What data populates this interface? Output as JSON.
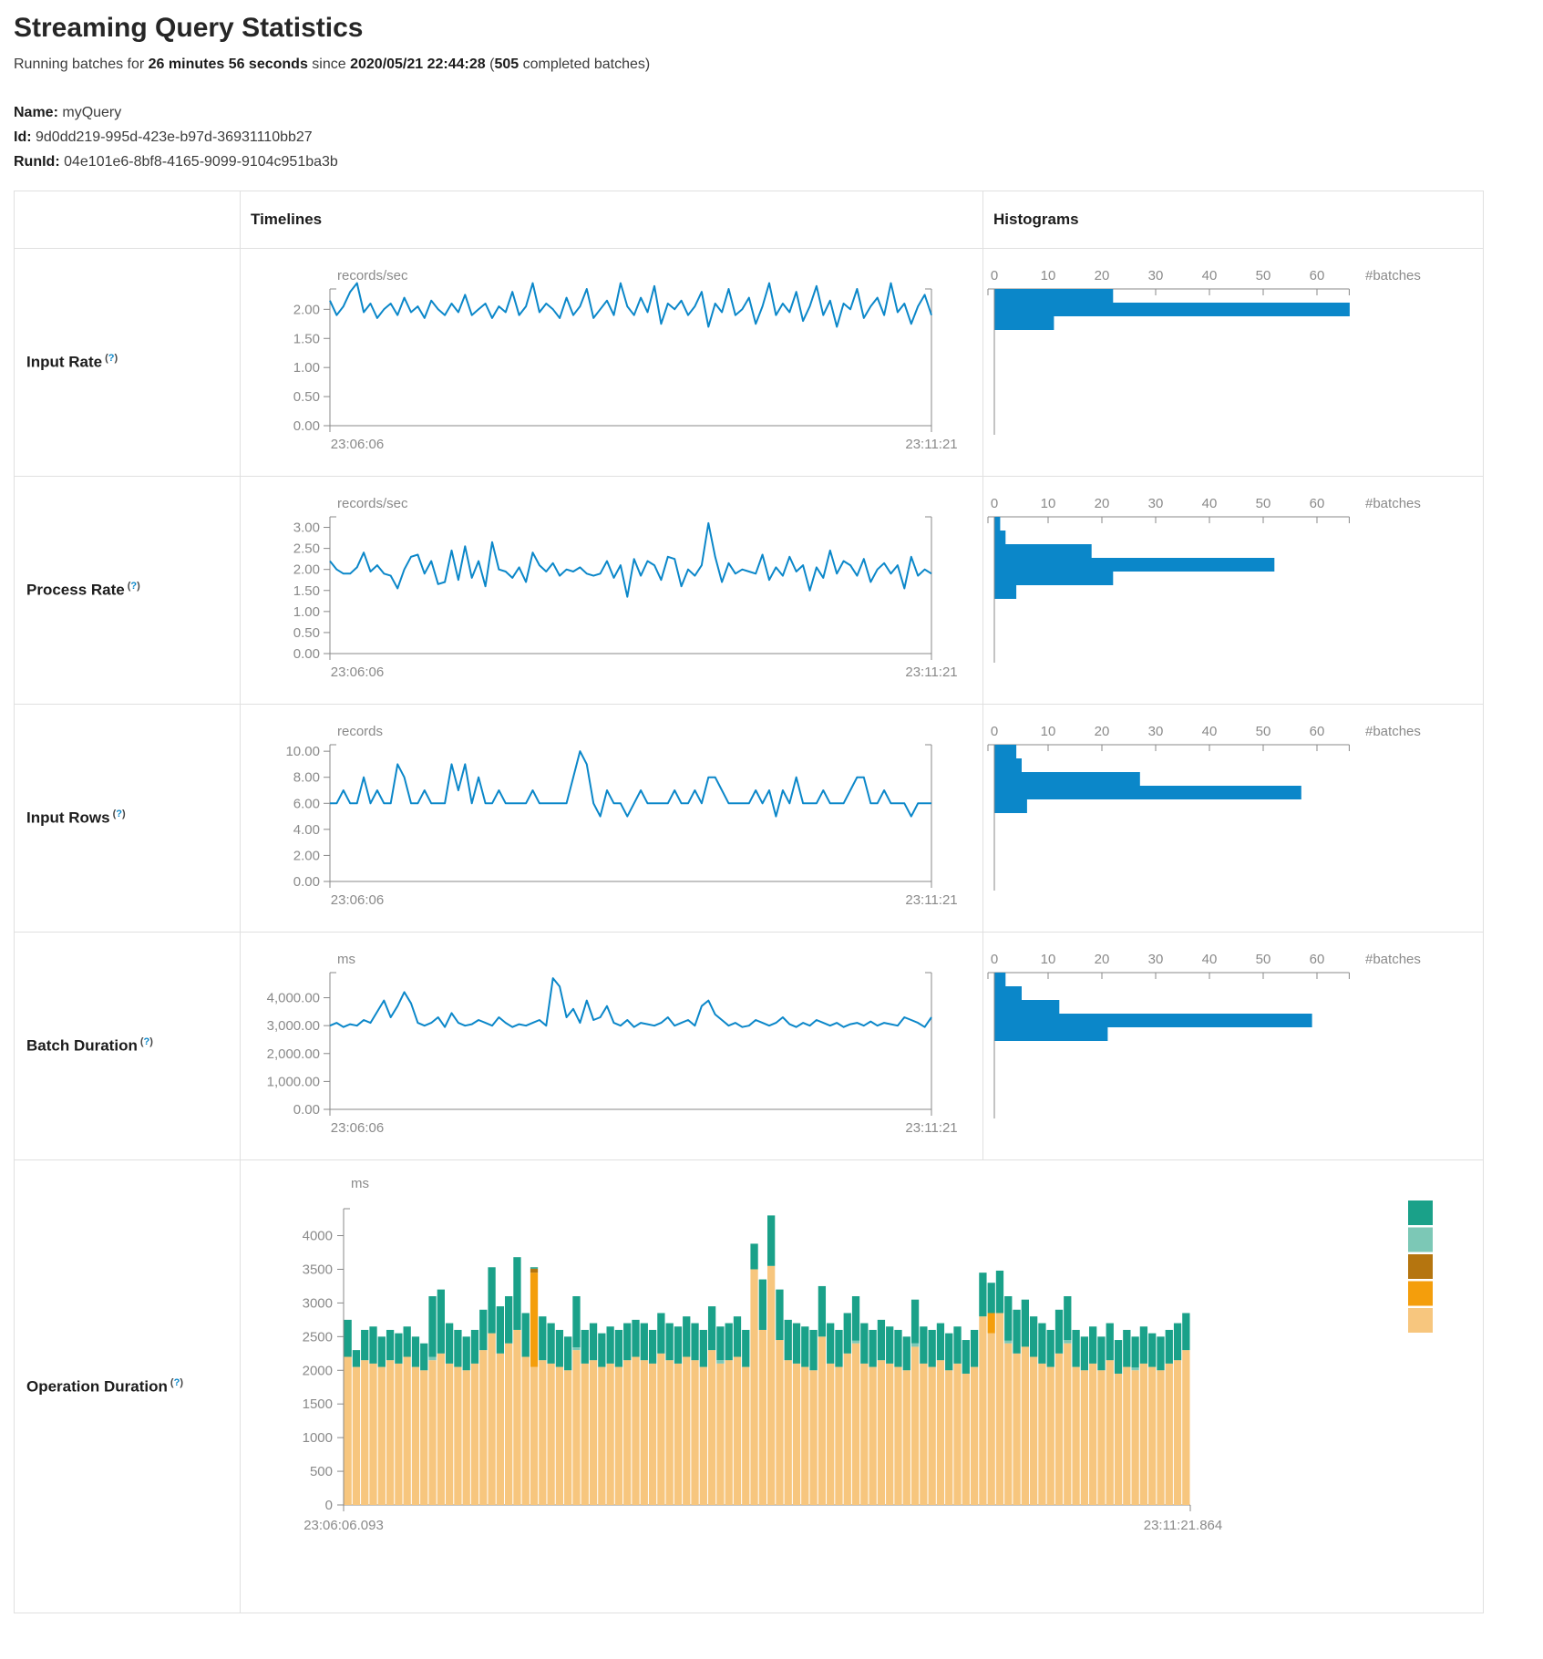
{
  "page": {
    "title": "Streaming Query Statistics",
    "subtitle": {
      "prefix": "Running batches for ",
      "duration": "26 minutes 56 seconds",
      "mid": " since ",
      "since": "2020/05/21 22:44:28",
      "paren_open": " (",
      "batches": "505",
      "paren_close": " completed batches)"
    },
    "name_label": "Name:",
    "name": "myQuery",
    "id_label": "Id:",
    "id": "9d0dd219-995d-423e-b97d-36931110bb27",
    "runid_label": "RunId:",
    "runid": "04e101e6-8bf8-4165-9099-9104c951ba3b"
  },
  "table": {
    "headers": {
      "timelines": "Timelines",
      "histograms": "Histograms"
    }
  },
  "help": {
    "open": "(",
    "q": "?",
    "close": ")"
  },
  "colors": {
    "line": "#0b87c9",
    "hist": "#0b87c9",
    "axis": "#888888",
    "tick_text": "#8a8a8a",
    "teal": "#1aa189",
    "light_teal": "#7cc8b6",
    "brown": "#b5750f",
    "orange": "#f49e0c",
    "tan": "#f7c67e"
  },
  "chart_data": [
    {
      "row": "Input Rate",
      "type": "line",
      "unit": "records/sec",
      "x_start": "23:06:06",
      "x_end": "23:11:21",
      "ylim": [
        0,
        2.35
      ],
      "y_tick_values": [
        2,
        1.5,
        1,
        0.5,
        0
      ],
      "y_tick_labels": [
        "2.00",
        "1.50",
        "1.00",
        "0.50",
        "0.00"
      ],
      "values": [
        2.15,
        1.9,
        2.05,
        2.3,
        2.45,
        1.95,
        2.1,
        1.85,
        2.0,
        2.1,
        1.9,
        2.2,
        1.95,
        2.05,
        1.85,
        2.15,
        2.0,
        1.9,
        2.1,
        1.95,
        2.25,
        1.9,
        2.0,
        2.1,
        1.85,
        2.05,
        1.95,
        2.3,
        1.9,
        2.05,
        2.45,
        1.95,
        2.1,
        2.0,
        1.85,
        2.2,
        1.9,
        2.05,
        2.35,
        1.85,
        2.0,
        2.15,
        1.9,
        2.45,
        2.05,
        1.9,
        2.2,
        1.95,
        2.4,
        1.75,
        2.1,
        2.0,
        2.15,
        1.9,
        2.05,
        2.3,
        1.7,
        2.1,
        1.95,
        2.35,
        1.9,
        2.0,
        2.2,
        1.75,
        2.05,
        2.45,
        1.9,
        2.1,
        1.95,
        2.3,
        1.8,
        2.05,
        2.4,
        1.9,
        2.15,
        1.7,
        2.1,
        2.0,
        2.35,
        1.85,
        2.05,
        2.2,
        1.9,
        2.45,
        1.95,
        2.1,
        1.75,
        2.05,
        2.25,
        1.9
      ],
      "histogram": {
        "xlabel": "#batches",
        "tick_values": [
          0,
          10,
          20,
          30,
          40,
          50,
          60
        ],
        "tick_labels": [
          "0",
          "10",
          "20",
          "30",
          "40",
          "50",
          "60"
        ],
        "xlim": [
          0,
          66
        ],
        "bins": [
          22,
          66,
          11
        ]
      }
    },
    {
      "row": "Process Rate",
      "type": "line",
      "unit": "records/sec",
      "x_start": "23:06:06",
      "x_end": "23:11:21",
      "ylim": [
        0,
        3.25
      ],
      "y_tick_values": [
        3,
        2.5,
        2,
        1.5,
        1,
        0.5,
        0
      ],
      "y_tick_labels": [
        "3.00",
        "2.50",
        "2.00",
        "1.50",
        "1.00",
        "0.50",
        "0.00"
      ],
      "values": [
        2.2,
        2.0,
        1.9,
        1.9,
        2.05,
        2.4,
        1.95,
        2.1,
        1.9,
        1.85,
        1.55,
        2.0,
        2.3,
        2.35,
        1.9,
        2.2,
        1.65,
        1.7,
        2.45,
        1.75,
        2.55,
        1.8,
        2.2,
        1.6,
        2.65,
        2.0,
        1.95,
        1.8,
        2.05,
        1.7,
        2.4,
        2.1,
        1.95,
        2.15,
        1.85,
        2.0,
        1.95,
        2.05,
        1.9,
        1.85,
        1.9,
        2.2,
        1.8,
        2.1,
        1.35,
        2.25,
        1.85,
        2.2,
        2.1,
        1.75,
        2.3,
        2.25,
        1.6,
        2.0,
        1.85,
        2.1,
        3.1,
        2.3,
        1.7,
        2.15,
        1.9,
        2.0,
        1.95,
        1.9,
        2.35,
        1.75,
        2.05,
        1.85,
        2.3,
        1.95,
        2.1,
        1.5,
        2.05,
        1.8,
        2.45,
        1.9,
        2.2,
        2.1,
        1.85,
        2.25,
        1.7,
        2.0,
        2.15,
        1.9,
        2.1,
        1.55,
        2.3,
        1.85,
        2.0,
        1.9
      ],
      "histogram": {
        "xlabel": "#batches",
        "tick_values": [
          0,
          10,
          20,
          30,
          40,
          50,
          60
        ],
        "tick_labels": [
          "0",
          "10",
          "20",
          "30",
          "40",
          "50",
          "60"
        ],
        "xlim": [
          0,
          66
        ],
        "bins": [
          1,
          2,
          18,
          52,
          22,
          4
        ]
      }
    },
    {
      "row": "Input Rows",
      "type": "line",
      "unit": "records",
      "x_start": "23:06:06",
      "x_end": "23:11:21",
      "ylim": [
        0,
        10.5
      ],
      "y_tick_values": [
        10,
        8,
        6,
        4,
        2,
        0
      ],
      "y_tick_labels": [
        "10.00",
        "8.00",
        "6.00",
        "4.00",
        "2.00",
        "0.00"
      ],
      "values": [
        6,
        6,
        7,
        6,
        6,
        8,
        6,
        7,
        6,
        6,
        9,
        8,
        6,
        6,
        7,
        6,
        6,
        6,
        9,
        7,
        9,
        6,
        8,
        6,
        6,
        7,
        6,
        6,
        6,
        6,
        7,
        6,
        6,
        6,
        6,
        6,
        8,
        10,
        9,
        6,
        5,
        7,
        6,
        6,
        5,
        6,
        7,
        6,
        6,
        6,
        6,
        7,
        6,
        6,
        7,
        6,
        8,
        8,
        7,
        6,
        6,
        6,
        6,
        7,
        6,
        7,
        5,
        7,
        6,
        8,
        6,
        6,
        6,
        7,
        6,
        6,
        6,
        7,
        8,
        8,
        6,
        6,
        7,
        6,
        6,
        6,
        5,
        6,
        6,
        6
      ],
      "histogram": {
        "xlabel": "#batches",
        "tick_values": [
          0,
          10,
          20,
          30,
          40,
          50,
          60
        ],
        "tick_labels": [
          "0",
          "10",
          "20",
          "30",
          "40",
          "50",
          "60"
        ],
        "xlim": [
          0,
          66
        ],
        "bins": [
          4,
          5,
          27,
          57,
          6
        ]
      }
    },
    {
      "row": "Batch Duration",
      "type": "line",
      "unit": "ms",
      "x_start": "23:06:06",
      "x_end": "23:11:21",
      "ylim": [
        0,
        4900
      ],
      "y_tick_values": [
        4000,
        3000,
        2000,
        1000,
        0
      ],
      "y_tick_labels": [
        "4,000.00",
        "3,000.00",
        "2,000.00",
        "1,000.00",
        "0.00"
      ],
      "values": [
        3000,
        3100,
        2950,
        3050,
        3000,
        3200,
        3100,
        3500,
        3900,
        3300,
        3700,
        4200,
        3800,
        3100,
        3000,
        3100,
        3300,
        2950,
        3450,
        3100,
        3000,
        3050,
        3200,
        3100,
        3000,
        3300,
        3100,
        2950,
        3050,
        3000,
        3100,
        3200,
        3000,
        4700,
        4400,
        3300,
        3600,
        3100,
        3900,
        3200,
        3300,
        3700,
        3100,
        3000,
        3200,
        2950,
        3100,
        3050,
        3000,
        3100,
        3300,
        3000,
        3100,
        3200,
        3000,
        3700,
        3900,
        3400,
        3200,
        3000,
        3100,
        2950,
        3000,
        3200,
        3100,
        3000,
        3100,
        3300,
        3050,
        2950,
        3100,
        3000,
        3200,
        3100,
        3000,
        3100,
        2950,
        3050,
        3100,
        3000,
        3150,
        3000,
        3100,
        3050,
        3000,
        3300,
        3200,
        3100,
        2950,
        3300
      ],
      "histogram": {
        "xlabel": "#batches",
        "tick_values": [
          0,
          10,
          20,
          30,
          40,
          50,
          60
        ],
        "tick_labels": [
          "0",
          "10",
          "20",
          "30",
          "40",
          "50",
          "60"
        ],
        "xlim": [
          0,
          66
        ],
        "bins": [
          2,
          5,
          12,
          59,
          21
        ]
      }
    },
    {
      "row": "Operation Duration",
      "type": "stacked-bar",
      "unit": "ms",
      "x_start": "23:06:06.093",
      "x_end": "23:11:21.864",
      "ylim": [
        0,
        4400
      ],
      "y_tick_values": [
        4000,
        3500,
        3000,
        2500,
        2000,
        1500,
        1000,
        500,
        0
      ],
      "y_tick_labels": [
        "4000",
        "3500",
        "3000",
        "2500",
        "2000",
        "1500",
        "1000",
        "500",
        "0"
      ],
      "legend": [
        "teal",
        "light_teal",
        "brown",
        "orange",
        "tan"
      ],
      "series": [
        {
          "color": "tan",
          "values": [
            2200,
            2050,
            2150,
            2100,
            2050,
            2150,
            2100,
            2200,
            2050,
            2000,
            2150,
            2250,
            2100,
            2050,
            2000,
            2100,
            2300,
            2550,
            2250,
            2400,
            2600,
            2200,
            2050,
            2150,
            2100,
            2050,
            2000,
            2300,
            2100,
            2150,
            2050,
            2100,
            2050,
            2150,
            2200,
            2150,
            2100,
            2250,
            2150,
            2100,
            2200,
            2150,
            2050,
            2300,
            2100,
            2150,
            2200,
            2050,
            3500,
            2600,
            3550,
            2450,
            2150,
            2100,
            2050,
            2000,
            2500,
            2100,
            2050,
            2250,
            2400,
            2100,
            2050,
            2150,
            2100,
            2050,
            2000,
            2350,
            2100,
            2050,
            2150,
            2000,
            2100,
            1950,
            2050,
            2800,
            2550,
            2850,
            2400,
            2250,
            2350,
            2200,
            2100,
            2050,
            2250,
            2400,
            2050,
            2000,
            2100,
            2000,
            2150,
            1950,
            2050,
            2000,
            2100,
            2050,
            2000,
            2100,
            2150,
            2300
          ]
        },
        {
          "color": "orange",
          "values": [
            0,
            0,
            0,
            0,
            0,
            0,
            0,
            0,
            0,
            0,
            0,
            0,
            0,
            0,
            0,
            0,
            0,
            0,
            0,
            0,
            0,
            0,
            1400,
            0,
            0,
            0,
            0,
            0,
            0,
            0,
            0,
            0,
            0,
            0,
            0,
            0,
            0,
            0,
            0,
            0,
            0,
            0,
            0,
            0,
            0,
            0,
            0,
            0,
            0,
            0,
            0,
            0,
            0,
            0,
            0,
            0,
            0,
            0,
            0,
            0,
            0,
            0,
            0,
            0,
            0,
            0,
            0,
            0,
            0,
            0,
            0,
            0,
            0,
            0,
            0,
            0,
            300,
            0,
            0,
            0,
            0,
            0,
            0,
            0,
            0,
            0,
            0,
            0,
            0,
            0,
            0,
            0,
            0,
            0,
            0,
            0,
            0,
            0,
            0,
            0
          ]
        },
        {
          "color": "brown",
          "values": [
            0,
            0,
            0,
            0,
            0,
            0,
            0,
            0,
            0,
            0,
            0,
            0,
            0,
            0,
            0,
            0,
            0,
            0,
            0,
            0,
            0,
            0,
            60,
            0,
            0,
            0,
            0,
            0,
            0,
            0,
            0,
            0,
            0,
            0,
            0,
            0,
            0,
            0,
            0,
            0,
            0,
            0,
            0,
            0,
            0,
            0,
            0,
            0,
            0,
            0,
            0,
            0,
            0,
            0,
            0,
            0,
            0,
            0,
            0,
            0,
            0,
            0,
            0,
            0,
            0,
            0,
            0,
            0,
            0,
            0,
            0,
            0,
            0,
            0,
            0,
            0,
            0,
            0,
            0,
            0,
            0,
            0,
            0,
            0,
            0,
            0,
            0,
            0,
            0,
            0,
            0,
            0,
            0,
            0,
            0,
            0,
            0,
            0,
            0,
            0
          ]
        },
        {
          "color": "light_teal",
          "values": [
            0,
            0,
            0,
            0,
            0,
            0,
            0,
            0,
            0,
            0,
            50,
            0,
            0,
            0,
            0,
            0,
            0,
            0,
            0,
            0,
            0,
            0,
            0,
            0,
            0,
            0,
            0,
            40,
            0,
            0,
            0,
            0,
            0,
            0,
            0,
            0,
            0,
            0,
            0,
            0,
            0,
            0,
            0,
            0,
            50,
            0,
            0,
            0,
            0,
            0,
            0,
            0,
            0,
            0,
            0,
            0,
            0,
            0,
            0,
            0,
            40,
            0,
            0,
            0,
            0,
            0,
            0,
            50,
            0,
            0,
            0,
            0,
            0,
            0,
            0,
            0,
            0,
            0,
            40,
            0,
            0,
            0,
            0,
            0,
            0,
            50,
            0,
            0,
            0,
            0,
            0,
            0,
            0,
            40,
            0,
            0,
            0,
            0,
            0,
            0
          ]
        },
        {
          "color": "teal",
          "values": [
            550,
            250,
            450,
            550,
            450,
            450,
            450,
            450,
            450,
            400,
            900,
            950,
            600,
            550,
            500,
            500,
            600,
            980,
            700,
            700,
            1080,
            650,
            20,
            650,
            600,
            550,
            500,
            760,
            500,
            550,
            500,
            550,
            550,
            550,
            550,
            550,
            500,
            600,
            550,
            550,
            600,
            550,
            550,
            650,
            500,
            550,
            600,
            550,
            380,
            750,
            750,
            750,
            600,
            600,
            600,
            600,
            750,
            600,
            550,
            600,
            660,
            600,
            550,
            600,
            550,
            550,
            500,
            650,
            550,
            550,
            550,
            550,
            550,
            500,
            550,
            650,
            450,
            630,
            660,
            650,
            700,
            600,
            600,
            550,
            650,
            650,
            550,
            500,
            550,
            500,
            550,
            500,
            550,
            460,
            550,
            500,
            500,
            500,
            550,
            550
          ]
        }
      ]
    }
  ]
}
